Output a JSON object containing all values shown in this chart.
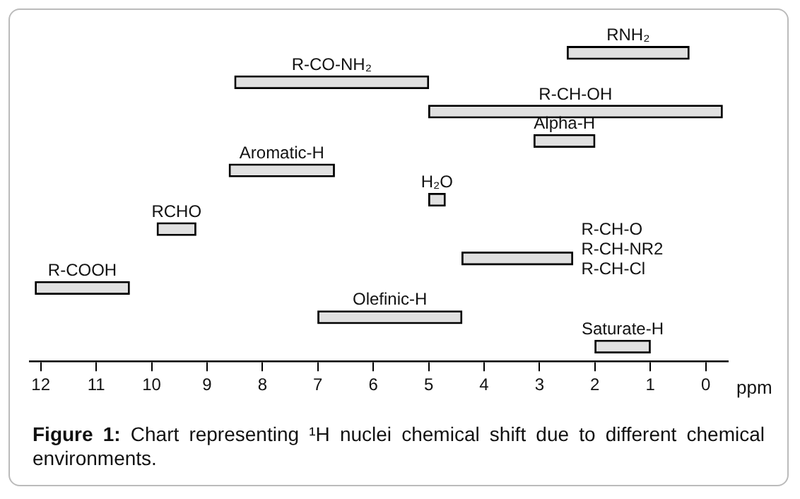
{
  "chart_data": {
    "type": "bar",
    "orientation": "horizontal",
    "xlabel": "ppm",
    "categories": [
      "RNH₂",
      "R-CO-NH₂",
      "R-CH-OH",
      "Alpha-H",
      "Aromatic-H",
      "H₂O",
      "RCHO",
      "R-CH-O\nR-CH-NR2\nR-CH-Cl",
      "R-COOH",
      "Olefinic-H",
      "Saturate-H"
    ],
    "base": [
      0.3,
      5.0,
      -0.3,
      2.0,
      6.7,
      4.7,
      9.2,
      2.4,
      10.4,
      4.4,
      1.0
    ],
    "values": [
      2.2,
      3.5,
      5.3,
      1.1,
      1.9,
      0.3,
      0.7,
      2.0,
      1.7,
      2.6,
      1.0
    ],
    "color": "#e0e0e0",
    "xlim": [
      12.2,
      -0.4
    ],
    "xticks": [
      12,
      11,
      10,
      9,
      8,
      7,
      6,
      5,
      4,
      3,
      2,
      1,
      0
    ],
    "grid": false,
    "legend": false,
    "tick_labels": "x",
    "annotations": [
      "Figure 1: Chart representing ¹H nuclei chemical shift due to different chemical environments."
    ]
  }
}
